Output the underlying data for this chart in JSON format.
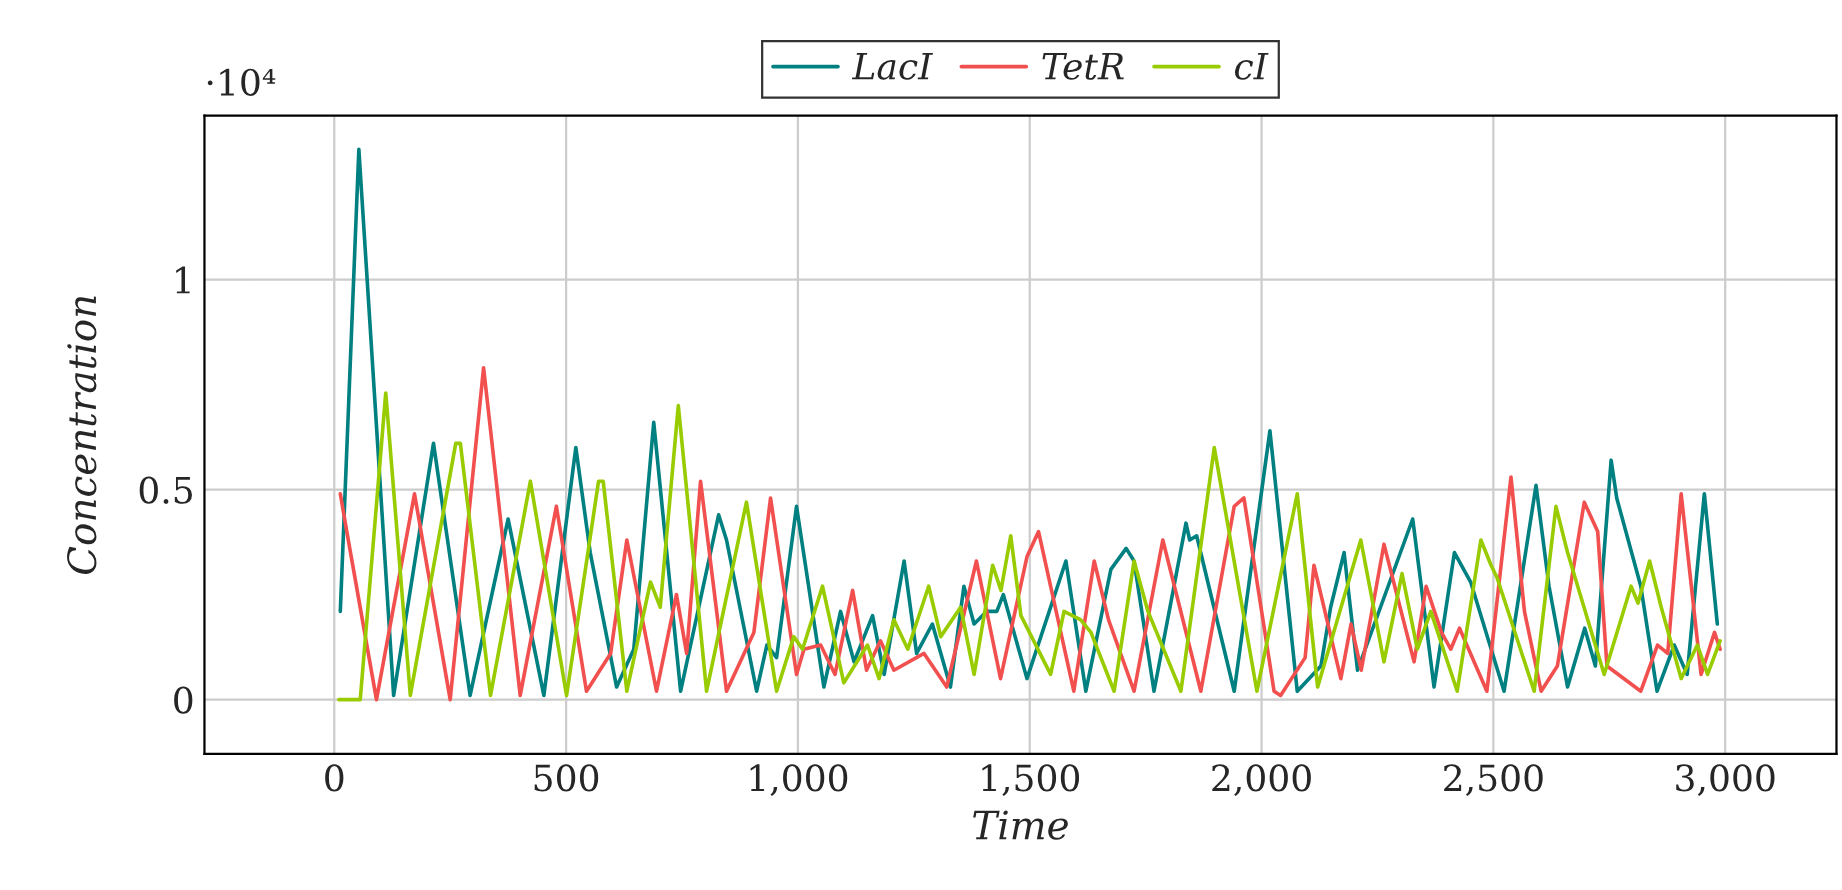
{
  "chart_data": {
    "type": "line",
    "xlabel": "Time",
    "ylabel": "Concentration",
    "annotations": [
      "·10⁴"
    ],
    "xlim": [
      -280,
      3240
    ],
    "ylim": [
      -0.129,
      1.39
    ],
    "xticks": [
      0,
      500,
      {
        "value": 1000,
        "label": "1,000"
      },
      {
        "value": 1500,
        "label": "1,500"
      },
      {
        "value": 2000,
        "label": "2,000"
      },
      {
        "value": 2500,
        "label": "2,500"
      },
      {
        "value": 3000,
        "label": "3,000"
      }
    ],
    "yticks": [
      0,
      0.5,
      1
    ],
    "grid": true,
    "legend": "top",
    "marker": "none",
    "line_style": "solid",
    "series": [
      {
        "name": "LacI",
        "color": "#008080",
        "x": [
          13,
          53,
          128,
          214,
          293,
          375,
          452,
          521,
          552,
          609,
          646,
          689,
          747,
          790,
          829,
          846,
          911,
          933,
          954,
          997,
          1056,
          1092,
          1121,
          1161,
          1186,
          1229,
          1256,
          1290,
          1329,
          1358,
          1380,
          1407,
          1429,
          1443,
          1494,
          1578,
          1621,
          1675,
          1708,
          1725,
          1768,
          1837,
          1845,
          1860,
          1941,
          2018,
          2077,
          2128,
          2149,
          2178,
          2207,
          2326,
          2372,
          2416,
          2451,
          2523,
          2592,
          2620,
          2660,
          2697,
          2720,
          2754,
          2766,
          2818,
          2853,
          2890,
          2918,
          2955,
          2983
        ],
        "values": [
          0.21,
          1.31,
          0.01,
          0.61,
          0.01,
          0.43,
          0.01,
          0.6,
          0.35,
          0.03,
          0.12,
          0.66,
          0.02,
          0.24,
          0.44,
          0.38,
          0.02,
          0.13,
          0.1,
          0.46,
          0.03,
          0.21,
          0.09,
          0.2,
          0.06,
          0.33,
          0.11,
          0.18,
          0.03,
          0.27,
          0.18,
          0.21,
          0.21,
          0.25,
          0.05,
          0.33,
          0.02,
          0.31,
          0.36,
          0.33,
          0.02,
          0.42,
          0.38,
          0.39,
          0.02,
          0.64,
          0.02,
          0.08,
          0.22,
          0.35,
          0.07,
          0.43,
          0.03,
          0.35,
          0.28,
          0.02,
          0.51,
          0.27,
          0.03,
          0.17,
          0.08,
          0.57,
          0.48,
          0.27,
          0.02,
          0.13,
          0.06,
          0.49,
          0.18
        ]
      },
      {
        "name": "TetR",
        "color": "#f24f4f",
        "x": [
          13,
          27,
          91,
          173,
          250,
          322,
          401,
          479,
          544,
          596,
          631,
          695,
          738,
          760,
          790,
          846,
          905,
          941,
          997,
          1013,
          1049,
          1080,
          1118,
          1148,
          1178,
          1207,
          1272,
          1321,
          1385,
          1437,
          1494,
          1519,
          1595,
          1639,
          1670,
          1725,
          1787,
          1869,
          1941,
          1962,
          2027,
          2041,
          2094,
          2113,
          2171,
          2193,
          2215,
          2264,
          2329,
          2355,
          2388,
          2408,
          2427,
          2486,
          2538,
          2567,
          2603,
          2638,
          2696,
          2725,
          2745,
          2818,
          2854,
          2876,
          2905,
          2948,
          2977,
          2989
        ],
        "values": [
          0.49,
          0.4,
          0.0,
          0.49,
          0.0,
          0.79,
          0.01,
          0.46,
          0.02,
          0.11,
          0.38,
          0.02,
          0.25,
          0.11,
          0.52,
          0.02,
          0.16,
          0.48,
          0.06,
          0.12,
          0.13,
          0.06,
          0.26,
          0.07,
          0.14,
          0.07,
          0.11,
          0.03,
          0.33,
          0.05,
          0.34,
          0.4,
          0.02,
          0.33,
          0.19,
          0.02,
          0.38,
          0.02,
          0.46,
          0.48,
          0.02,
          0.01,
          0.1,
          0.32,
          0.05,
          0.18,
          0.07,
          0.37,
          0.09,
          0.27,
          0.16,
          0.12,
          0.17,
          0.02,
          0.53,
          0.21,
          0.02,
          0.08,
          0.47,
          0.4,
          0.08,
          0.02,
          0.13,
          0.11,
          0.49,
          0.06,
          0.16,
          0.12
        ]
      },
      {
        "name": "cI",
        "color": "#99cc00",
        "x": [
          10,
          56,
          111,
          164,
          262,
          272,
          337,
          423,
          501,
          570,
          580,
          631,
          682,
          703,
          742,
          803,
          889,
          954,
          991,
          1010,
          1053,
          1099,
          1150,
          1175,
          1207,
          1237,
          1282,
          1308,
          1351,
          1380,
          1420,
          1438,
          1459,
          1481,
          1545,
          1574,
          1610,
          1632,
          1682,
          1725,
          1755,
          1826,
          1898,
          1990,
          2077,
          2121,
          2214,
          2264,
          2303,
          2336,
          2365,
          2422,
          2473,
          2495,
          2508,
          2588,
          2635,
          2660,
          2739,
          2797,
          2812,
          2837,
          2862,
          2905,
          2940,
          2962,
          2989
        ],
        "values": [
          0.0,
          0.0,
          0.73,
          0.01,
          0.61,
          0.61,
          0.01,
          0.52,
          0.01,
          0.52,
          0.52,
          0.02,
          0.28,
          0.22,
          0.7,
          0.02,
          0.47,
          0.02,
          0.15,
          0.12,
          0.27,
          0.04,
          0.13,
          0.05,
          0.19,
          0.12,
          0.27,
          0.15,
          0.22,
          0.06,
          0.32,
          0.26,
          0.39,
          0.2,
          0.06,
          0.21,
          0.19,
          0.16,
          0.02,
          0.33,
          0.21,
          0.02,
          0.6,
          0.02,
          0.49,
          0.03,
          0.38,
          0.09,
          0.3,
          0.12,
          0.21,
          0.02,
          0.38,
          0.32,
          0.29,
          0.02,
          0.46,
          0.35,
          0.06,
          0.27,
          0.23,
          0.33,
          0.22,
          0.05,
          0.13,
          0.06,
          0.14
        ]
      }
    ]
  }
}
